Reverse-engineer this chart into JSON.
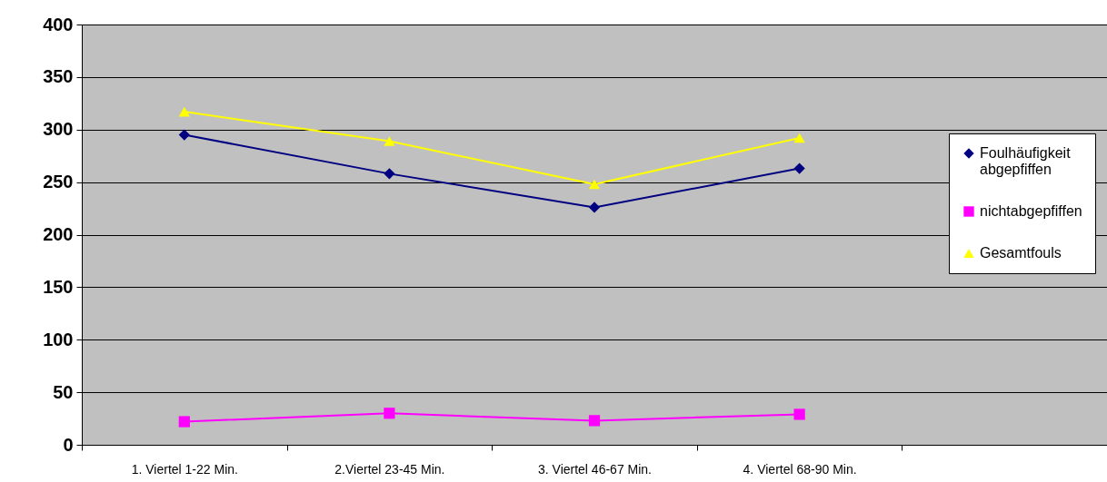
{
  "chart_data": {
    "type": "line",
    "categories": [
      "1. Viertel 1-22 Min.",
      "2.Viertel 23-45 Min.",
      "3. Viertel 46-67 Min.",
      "4. Viertel 68-90 Min.",
      null
    ],
    "series": [
      {
        "name": "Foulhäufigkeit abgepfiffen",
        "color": "#000080",
        "marker": "diamond",
        "values": [
          295,
          258,
          226,
          263,
          null
        ]
      },
      {
        "name": "nichtabgepfiffen",
        "color": "#ff00ff",
        "marker": "square",
        "values": [
          22,
          30,
          23,
          29,
          null
        ]
      },
      {
        "name": "Gesamtfouls",
        "color": "#ffff00",
        "marker": "triangle",
        "values": [
          317,
          289,
          248,
          292,
          null
        ]
      }
    ],
    "ylim": [
      0,
      400
    ],
    "yticks": [
      0,
      50,
      100,
      150,
      200,
      250,
      300,
      350,
      400
    ],
    "grid": "y",
    "legend": "right",
    "line_style": "solid"
  }
}
